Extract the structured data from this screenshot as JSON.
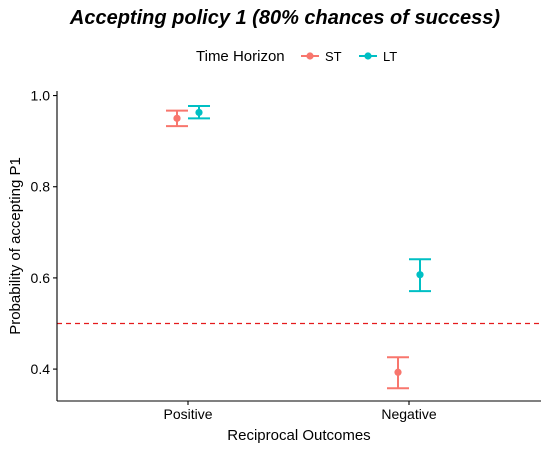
{
  "chart_data": {
    "type": "scatter",
    "title": "Accepting policy 1 (80% chances of success)",
    "xlabel": "Reciprocal Outcomes",
    "ylabel": "Probability of accepting P1",
    "categories": [
      "Positive",
      "Negative"
    ],
    "ylim": [
      0.33,
      1.01
    ],
    "yticks": [
      "0.4",
      "0.6",
      "0.8",
      "1.0"
    ],
    "legend": {
      "title": "Time Horizon",
      "position": "top"
    },
    "grid": false,
    "reference_line": {
      "y": 0.5,
      "style": "dashed",
      "color": "#E41A1C"
    },
    "series": [
      {
        "name": "ST",
        "color": "#F8766D",
        "points": [
          {
            "category": "Positive",
            "y": 0.95,
            "low": 0.933,
            "high": 0.967
          },
          {
            "category": "Negative",
            "y": 0.393,
            "low": 0.358,
            "high": 0.426
          }
        ]
      },
      {
        "name": "LT",
        "color": "#00BFC4",
        "points": [
          {
            "category": "Positive",
            "y": 0.963,
            "low": 0.95,
            "high": 0.977
          },
          {
            "category": "Negative",
            "y": 0.607,
            "low": 0.571,
            "high": 0.641
          }
        ]
      }
    ]
  }
}
